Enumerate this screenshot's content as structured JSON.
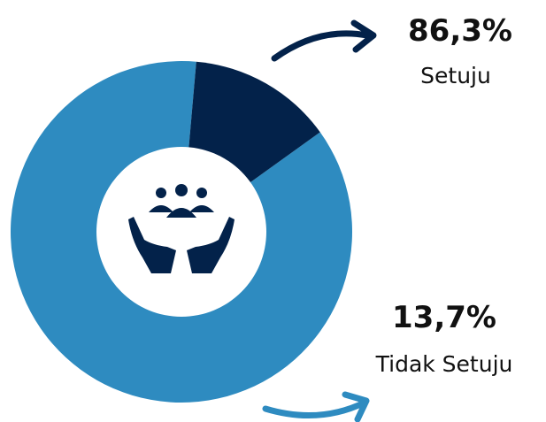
{
  "chart_data": {
    "type": "donut",
    "categories": [
      "Setuju",
      "Tidak Setuju"
    ],
    "values": [
      86.3,
      13.7
    ],
    "value_labels": [
      "86,3%",
      "13,7%"
    ],
    "colors": [
      "#2e8bc0",
      "#03224a"
    ]
  }
}
